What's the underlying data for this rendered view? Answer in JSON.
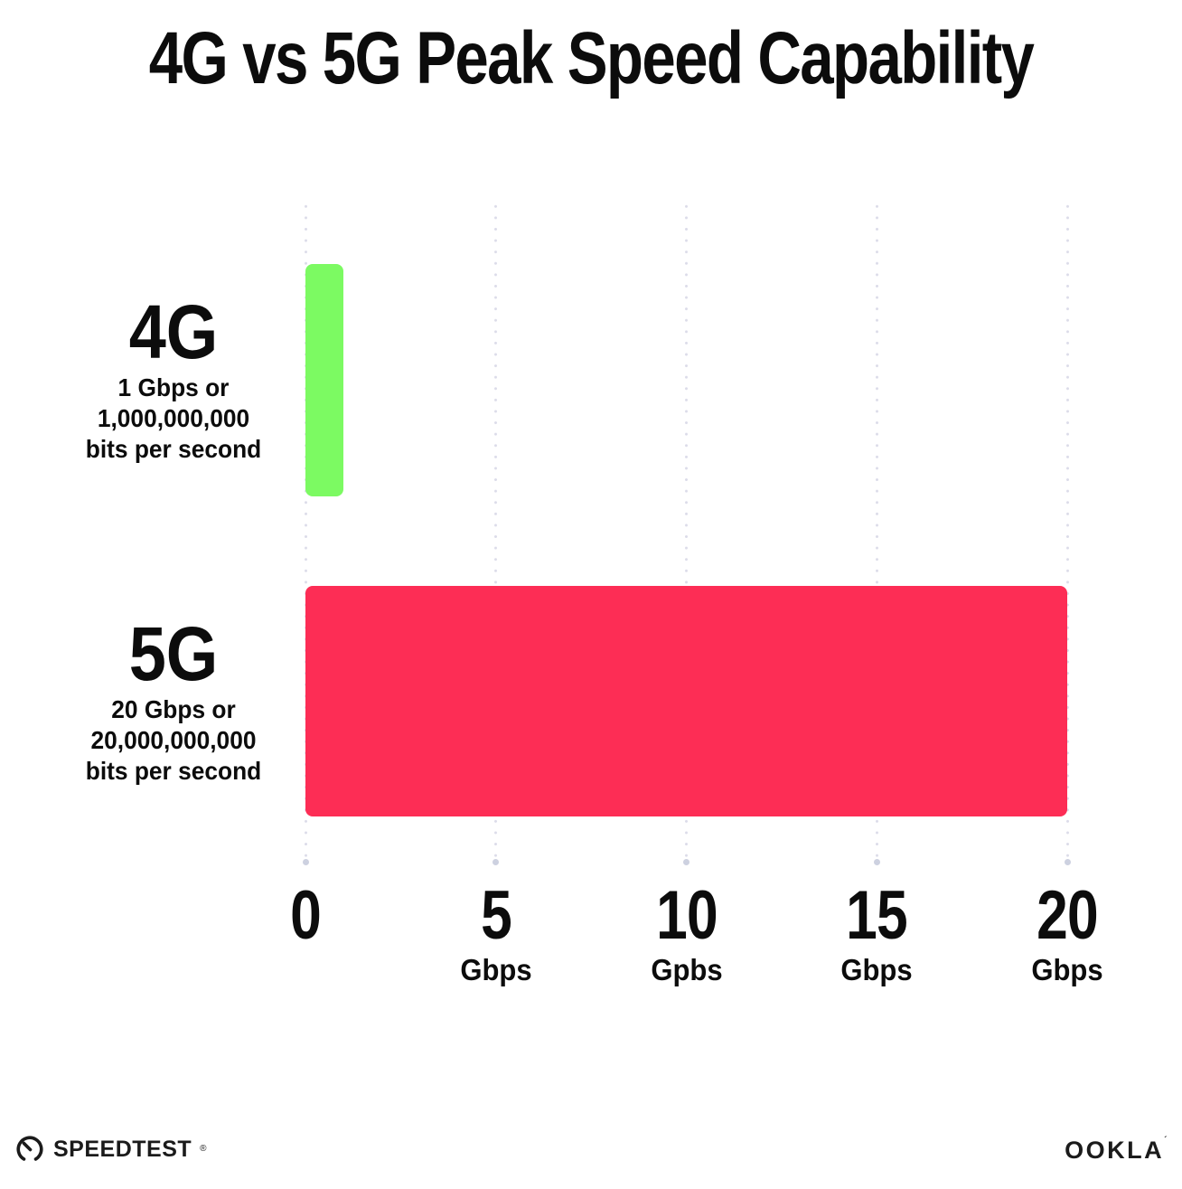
{
  "chart_data": {
    "type": "bar",
    "orientation": "horizontal",
    "title": "4G vs 5G Peak Speed Capability",
    "categories": [
      "4G",
      "5G"
    ],
    "values": [
      1,
      20
    ],
    "xlabel": "",
    "ylabel": "",
    "xlim": [
      0,
      20
    ],
    "grid": "vertical-dotted-gridlines",
    "legend": "none",
    "bars": [
      {
        "label": "4G",
        "sublabel_lines": [
          "1 Gbps or",
          "1,000,000,000",
          "bits per second"
        ],
        "value_gbps": 1,
        "color": "#7cfa62"
      },
      {
        "label": "5G",
        "sublabel_lines": [
          "20 Gbps or",
          "20,000,000,000",
          "bits per second"
        ],
        "value_gbps": 20,
        "color": "#fd2d55"
      }
    ],
    "x_axis": {
      "min": 0,
      "max": 20,
      "ticks": [
        {
          "value": 0,
          "label": "0",
          "unit": ""
        },
        {
          "value": 5,
          "label": "5",
          "unit": "Gbps"
        },
        {
          "value": 10,
          "label": "10",
          "unit": "Gpbs"
        },
        {
          "value": 15,
          "label": "15",
          "unit": "Gbps"
        },
        {
          "value": 20,
          "label": "20",
          "unit": "Gbps"
        }
      ]
    }
  },
  "colors": {
    "background": "#ffffff",
    "text": "#0c0c0c",
    "bar_4g": "#7cfa62",
    "bar_5g": "#fd2d55",
    "gridline_dot": "#dcdce9"
  },
  "footer": {
    "speedtest_label": "SPEEDTEST",
    "speedtest_trademark": "®",
    "ookla_label": "OOKLA",
    "ookla_trademark": "´"
  }
}
